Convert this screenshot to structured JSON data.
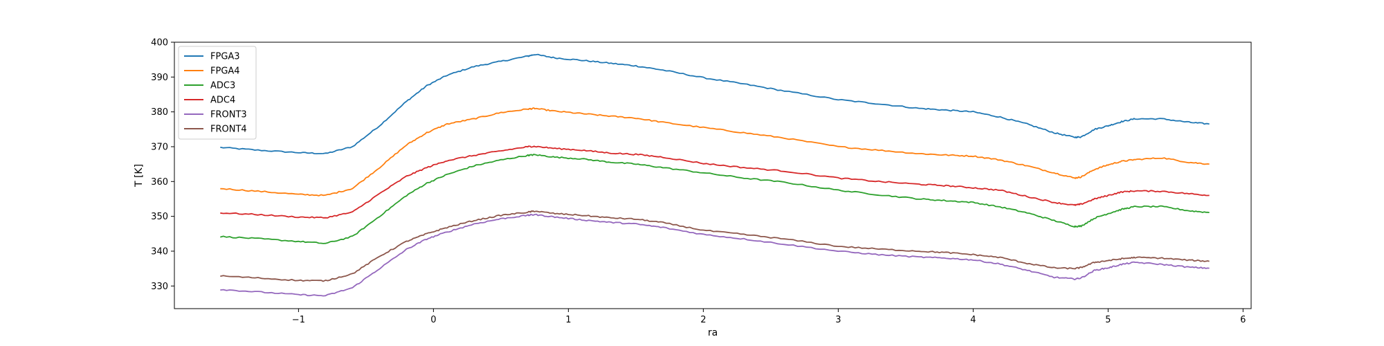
{
  "chart_data": {
    "type": "line",
    "title": "",
    "xlabel": "ra",
    "ylabel": "T [K]",
    "xlim": [
      -1.92,
      6.06
    ],
    "ylim": [
      323.5,
      400
    ],
    "xticks": [
      -1,
      0,
      1,
      2,
      3,
      4,
      5,
      6
    ],
    "yticks": [
      330,
      340,
      350,
      360,
      370,
      380,
      390,
      400
    ],
    "legend_position": "top-left",
    "grid": false,
    "series": [
      {
        "name": "FPGA3",
        "color": "#1f77b4",
        "x": [
          -1.58,
          -1.3,
          -1.0,
          -0.8,
          -0.6,
          -0.4,
          -0.2,
          -0.05,
          0.1,
          0.3,
          0.5,
          0.7,
          0.75,
          0.9,
          1.1,
          1.3,
          1.5,
          1.7,
          2.0,
          2.3,
          2.6,
          3.0,
          3.3,
          3.6,
          3.8,
          4.0,
          4.2,
          4.4,
          4.6,
          4.75,
          4.8,
          4.9,
          5.0,
          5.1,
          5.2,
          5.4,
          5.6,
          5.75
        ],
        "y": [
          369.8,
          369.0,
          368.3,
          368.0,
          370.0,
          376.0,
          383.0,
          387.5,
          390.5,
          393.0,
          394.5,
          396.0,
          396.5,
          395.5,
          394.8,
          394.0,
          393.2,
          392.0,
          389.8,
          388.0,
          386.0,
          383.5,
          382.3,
          381.0,
          380.5,
          380.0,
          378.5,
          376.5,
          374.0,
          372.7,
          372.8,
          375.0,
          376.0,
          377.2,
          378.0,
          378.0,
          377.0,
          376.5
        ]
      },
      {
        "name": "FPGA4",
        "color": "#ff7f0e",
        "x": [
          -1.58,
          -1.3,
          -1.0,
          -0.8,
          -0.6,
          -0.4,
          -0.2,
          -0.05,
          0.1,
          0.3,
          0.5,
          0.7,
          0.75,
          0.9,
          1.1,
          1.3,
          1.5,
          1.7,
          2.0,
          2.3,
          2.6,
          3.0,
          3.3,
          3.6,
          3.8,
          4.0,
          4.2,
          4.4,
          4.6,
          4.75,
          4.8,
          4.9,
          5.0,
          5.1,
          5.2,
          5.4,
          5.6,
          5.75
        ],
        "y": [
          358.0,
          357.2,
          356.3,
          356.0,
          358.0,
          364.0,
          370.5,
          374.0,
          376.5,
          378.0,
          379.8,
          380.8,
          381.0,
          380.2,
          379.5,
          378.8,
          378.2,
          377.0,
          375.5,
          374.0,
          372.5,
          370.0,
          369.0,
          368.0,
          367.6,
          367.3,
          366.2,
          364.5,
          362.5,
          361.0,
          361.3,
          363.5,
          364.8,
          365.8,
          366.3,
          366.8,
          365.5,
          365.0
        ]
      },
      {
        "name": "ADC3",
        "color": "#2ca02c",
        "x": [
          -1.58,
          -1.3,
          -1.0,
          -0.8,
          -0.6,
          -0.4,
          -0.2,
          -0.05,
          0.1,
          0.3,
          0.5,
          0.7,
          0.75,
          0.9,
          1.1,
          1.3,
          1.5,
          1.7,
          2.0,
          2.3,
          2.6,
          3.0,
          3.3,
          3.6,
          3.8,
          4.0,
          4.2,
          4.4,
          4.6,
          4.75,
          4.8,
          4.9,
          5.0,
          5.1,
          5.2,
          5.4,
          5.6,
          5.75
        ],
        "y": [
          344.2,
          343.6,
          342.8,
          342.2,
          344.2,
          350.0,
          356.0,
          359.5,
          362.0,
          364.5,
          366.2,
          367.5,
          367.7,
          367.0,
          366.5,
          365.6,
          365.0,
          364.0,
          362.5,
          361.0,
          359.8,
          357.5,
          356.2,
          355.0,
          354.5,
          354.0,
          352.7,
          351.0,
          348.8,
          347.1,
          347.2,
          349.5,
          350.8,
          352.0,
          352.8,
          352.8,
          351.6,
          351.1
        ]
      },
      {
        "name": "ADC4",
        "color": "#d62728",
        "x": [
          -1.58,
          -1.3,
          -1.0,
          -0.8,
          -0.6,
          -0.4,
          -0.2,
          -0.05,
          0.1,
          0.3,
          0.5,
          0.7,
          0.75,
          0.9,
          1.1,
          1.3,
          1.5,
          1.7,
          2.0,
          2.3,
          2.6,
          3.0,
          3.3,
          3.6,
          3.8,
          4.0,
          4.2,
          4.4,
          4.6,
          4.75,
          4.8,
          4.9,
          5.0,
          5.1,
          5.2,
          5.4,
          5.6,
          5.75
        ],
        "y": [
          351.0,
          350.5,
          349.8,
          349.6,
          351.2,
          356.5,
          361.5,
          364.0,
          366.0,
          367.5,
          368.8,
          370.0,
          370.1,
          369.5,
          369.0,
          368.2,
          367.8,
          367.0,
          365.2,
          364.0,
          363.0,
          361.0,
          360.0,
          359.2,
          358.8,
          358.2,
          357.5,
          355.7,
          354.0,
          353.2,
          353.5,
          355.0,
          356.0,
          357.0,
          357.3,
          357.2,
          356.5,
          356.0
        ]
      },
      {
        "name": "FRONT3",
        "color": "#9467bd",
        "x": [
          -1.58,
          -1.3,
          -1.0,
          -0.8,
          -0.6,
          -0.4,
          -0.2,
          -0.05,
          0.1,
          0.3,
          0.5,
          0.7,
          0.75,
          0.9,
          1.1,
          1.3,
          1.5,
          1.7,
          2.0,
          2.3,
          2.6,
          3.0,
          3.3,
          3.6,
          3.8,
          4.0,
          4.2,
          4.4,
          4.6,
          4.75,
          4.8,
          4.9,
          5.0,
          5.1,
          5.2,
          5.4,
          5.6,
          5.75
        ],
        "y": [
          329.0,
          328.3,
          327.5,
          327.2,
          329.5,
          335.0,
          340.5,
          343.5,
          345.5,
          347.8,
          349.3,
          350.3,
          350.5,
          349.8,
          349.0,
          348.3,
          347.8,
          346.8,
          344.8,
          343.5,
          342.0,
          340.0,
          339.0,
          338.3,
          338.0,
          337.5,
          336.3,
          334.5,
          332.5,
          332.0,
          332.3,
          334.5,
          335.2,
          336.2,
          336.8,
          336.2,
          335.4,
          335.1
        ]
      },
      {
        "name": "FRONT4",
        "color": "#8c564b",
        "x": [
          -1.58,
          -1.3,
          -1.0,
          -0.8,
          -0.6,
          -0.4,
          -0.2,
          -0.05,
          0.1,
          0.3,
          0.5,
          0.7,
          0.75,
          0.9,
          1.1,
          1.3,
          1.5,
          1.7,
          2.0,
          2.3,
          2.6,
          3.0,
          3.3,
          3.6,
          3.8,
          4.0,
          4.2,
          4.4,
          4.6,
          4.75,
          4.8,
          4.9,
          5.0,
          5.1,
          5.2,
          5.4,
          5.6,
          5.75
        ],
        "y": [
          332.9,
          332.3,
          331.6,
          331.5,
          333.5,
          338.5,
          342.8,
          345.0,
          346.8,
          348.8,
          350.3,
          351.2,
          351.5,
          350.8,
          350.3,
          349.6,
          349.2,
          348.2,
          346.0,
          344.8,
          343.5,
          341.4,
          340.6,
          340.0,
          339.6,
          339.0,
          338.2,
          336.5,
          335.2,
          335.0,
          335.3,
          336.8,
          337.3,
          337.8,
          338.2,
          338.0,
          337.4,
          337.1
        ]
      }
    ]
  }
}
